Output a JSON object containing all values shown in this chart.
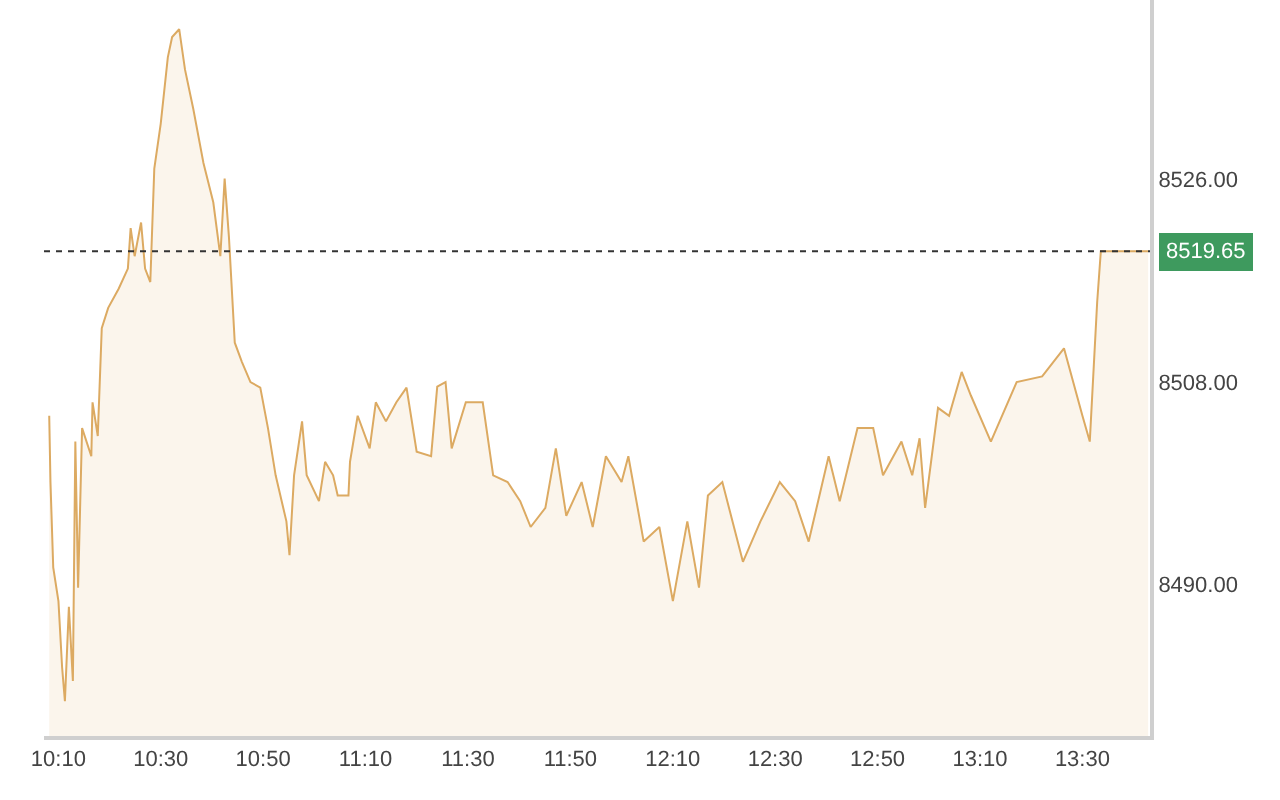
{
  "chart_data": {
    "type": "area",
    "x": [
      10.137,
      10.141,
      10.15,
      10.167,
      10.179,
      10.188,
      10.201,
      10.214,
      10.222,
      10.231,
      10.244,
      10.274,
      10.278,
      10.295,
      10.308,
      10.329,
      10.363,
      10.393,
      10.402,
      10.415,
      10.436,
      10.449,
      10.466,
      10.479,
      10.5,
      10.523,
      10.537,
      10.56,
      10.579,
      10.606,
      10.639,
      10.671,
      10.694,
      10.708,
      10.722,
      10.741,
      10.764,
      10.792,
      10.824,
      10.849,
      10.874,
      10.909,
      10.919,
      10.934,
      10.96,
      10.975,
      11.015,
      11.035,
      11.061,
      11.076,
      11.111,
      11.116,
      11.141,
      11.18,
      11.2,
      11.233,
      11.267,
      11.3,
      11.333,
      11.38,
      11.4,
      11.427,
      11.447,
      11.493,
      11.548,
      11.582,
      11.629,
      11.67,
      11.704,
      11.752,
      11.786,
      11.82,
      11.87,
      11.906,
      11.949,
      12.0,
      12.022,
      12.072,
      12.123,
      12.167,
      12.214,
      12.252,
      12.281,
      12.328,
      12.395,
      12.452,
      12.515,
      12.565,
      12.609,
      12.674,
      12.71,
      12.768,
      12.819,
      12.851,
      12.911,
      12.946,
      12.97,
      12.988,
      13.03,
      13.066,
      13.107,
      13.137,
      13.202,
      13.286,
      13.369,
      13.44,
      13.5,
      13.524,
      13.548,
      13.56,
      13.714
    ],
    "series": [
      {
        "color": "#dcaa62",
        "values": [
          8505.0,
          8499.1,
          8491.5,
          8488.5,
          8482.6,
          8479.6,
          8488.0,
          8481.4,
          8502.7,
          8489.7,
          8503.9,
          8501.4,
          8506.2,
          8503.2,
          8512.8,
          8514.6,
          8516.3,
          8518.1,
          8521.7,
          8519.2,
          8522.2,
          8518.1,
          8516.9,
          8527.0,
          8531.0,
          8536.9,
          8538.7,
          8539.4,
          8535.8,
          8532.3,
          8527.5,
          8524.0,
          8519.2,
          8526.1,
          8520.9,
          8511.5,
          8509.8,
          8508.0,
          8507.5,
          8503.9,
          8499.7,
          8495.6,
          8492.6,
          8499.7,
          8504.5,
          8499.7,
          8497.4,
          8500.9,
          8499.7,
          8497.9,
          8497.9,
          8500.9,
          8505.0,
          8502.1,
          8506.2,
          8504.5,
          8506.2,
          8507.5,
          8501.8,
          8501.4,
          8507.6,
          8508.0,
          8502.1,
          8506.2,
          8506.2,
          8499.7,
          8499.1,
          8497.4,
          8495.1,
          8496.8,
          8502.1,
          8496.1,
          8499.1,
          8495.1,
          8501.4,
          8499.1,
          8501.4,
          8493.8,
          8495.1,
          8488.5,
          8495.6,
          8489.7,
          8497.9,
          8499.1,
          8492.0,
          8495.6,
          8499.1,
          8497.4,
          8493.8,
          8501.4,
          8497.4,
          8503.9,
          8503.9,
          8499.7,
          8502.7,
          8499.7,
          8503.0,
          8496.8,
          8505.7,
          8505.0,
          8508.9,
          8506.8,
          8502.7,
          8508.0,
          8508.5,
          8511.0,
          8505.0,
          8502.7,
          8515.1,
          8519.65,
          8519.65
        ]
      }
    ],
    "xlim": [
      10.12,
      13.72
    ],
    "xticks": [
      {
        "value": 10.1667,
        "label": "10:10"
      },
      {
        "value": 10.5,
        "label": "10:30"
      },
      {
        "value": 10.8333,
        "label": "10:50"
      },
      {
        "value": 11.1667,
        "label": "11:10"
      },
      {
        "value": 11.5,
        "label": "11:30"
      },
      {
        "value": 11.8333,
        "label": "11:50"
      },
      {
        "value": 12.1667,
        "label": "12:10"
      },
      {
        "value": 12.5,
        "label": "12:30"
      },
      {
        "value": 12.8333,
        "label": "12:50"
      },
      {
        "value": 13.1667,
        "label": "13:10"
      },
      {
        "value": 13.5,
        "label": "13:30"
      }
    ],
    "ylim": [
      8476.5,
      8542
    ],
    "yticks": [
      {
        "value": 8490,
        "label": "8490.00"
      },
      {
        "value": 8508,
        "label": "8508.00"
      },
      {
        "value": 8526,
        "label": "8526.00"
      }
    ],
    "ref_lines": [
      {
        "axis": "y",
        "value": 8519.65,
        "label": "8519.65",
        "color": "#333333",
        "line_style": "dotted"
      }
    ]
  }
}
